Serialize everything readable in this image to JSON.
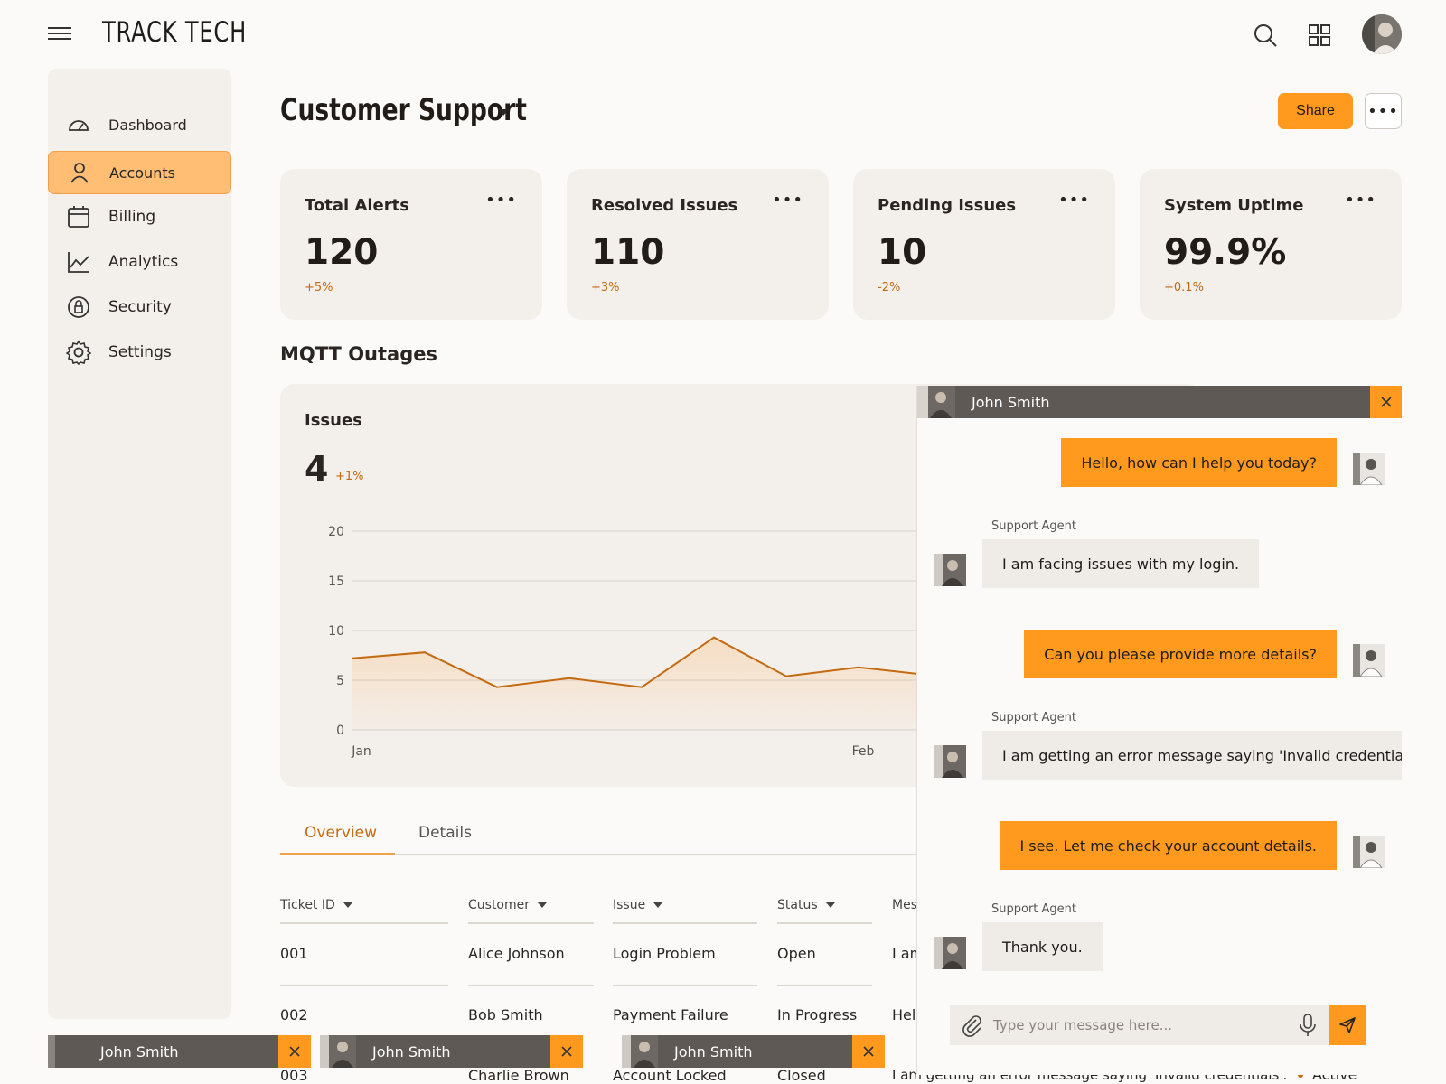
{
  "header": {
    "brand": "TRACK TECH"
  },
  "sidebar": {
    "items": [
      {
        "label": "Dashboard",
        "icon": "gauge-icon"
      },
      {
        "label": "Accounts",
        "icon": "user-icon",
        "active": true
      },
      {
        "label": "Billing",
        "icon": "calendar-icon"
      },
      {
        "label": "Analytics",
        "icon": "line-chart-icon"
      },
      {
        "label": "Security",
        "icon": "lock-icon"
      },
      {
        "label": "Settings",
        "icon": "gear-icon"
      }
    ]
  },
  "page": {
    "title": "Customer Support",
    "share_label": "Share"
  },
  "stats": [
    {
      "title": "Total Alerts",
      "value": "120",
      "delta": "+5%"
    },
    {
      "title": "Resolved Issues",
      "value": "110",
      "delta": "+3%"
    },
    {
      "title": "Pending Issues",
      "value": "10",
      "delta": "-2%"
    },
    {
      "title": "System Uptime",
      "value": "99.9%",
      "delta": "+0.1%"
    }
  ],
  "section_title": "MQTT Outages",
  "chart_panel": {
    "label": "Issues",
    "value": "4",
    "delta": "+1%"
  },
  "chart_data": {
    "type": "area",
    "title": "",
    "xlabel": "",
    "ylabel": "",
    "ylim": [
      0,
      20
    ],
    "y_ticks": [
      0,
      5,
      10,
      15,
      20
    ],
    "x_tick_labels": [
      "Jan",
      "Feb"
    ],
    "values": [
      7.2,
      7.8,
      4.3,
      5.2,
      4.3,
      9.3,
      5.4,
      6.3,
      5.5
    ],
    "grid": true
  },
  "tabs": [
    {
      "label": "Overview",
      "active": true
    },
    {
      "label": "Details",
      "active": false
    }
  ],
  "table": {
    "columns": [
      "Ticket ID",
      "Customer",
      "Issue",
      "Status",
      "Mes"
    ],
    "rows": [
      {
        "id": "001",
        "customer": "Alice Johnson",
        "issue": "Login Problem",
        "status": "Open",
        "message": "I am"
      },
      {
        "id": "002",
        "customer": "Bob Smith",
        "issue": "Payment Failure",
        "status": "In Progress",
        "message": "Hell"
      },
      {
        "id": "003",
        "customer": "Charlie Brown",
        "issue": "Account Locked",
        "status": "Closed",
        "message": "I am getting an error message saying 'Invalid credentials'."
      }
    ],
    "status_badge": "Active"
  },
  "chat": {
    "contact": "John Smith",
    "messages": [
      {
        "from": "me",
        "text": "Hello, how can I help you today?"
      },
      {
        "from": "agent",
        "sender": "Support Agent",
        "text": "I am facing issues with my login."
      },
      {
        "from": "me",
        "text": "Can you please provide more details?"
      },
      {
        "from": "agent",
        "sender": "Support Agent",
        "text": "I am getting an error message saying 'Invalid credentials'."
      },
      {
        "from": "me",
        "text": "I see. Let me check your account details."
      },
      {
        "from": "agent",
        "sender": "Support Agent",
        "text": "Thank you."
      }
    ],
    "input_placeholder": "Type your message here..."
  },
  "minimized_chats": [
    {
      "name": "John Smith"
    },
    {
      "name": "John Smith"
    },
    {
      "name": "John Smith"
    }
  ],
  "colors": {
    "accent": "#ff9a1e",
    "accent_light": "#ffbe73",
    "delta_text": "#c46a10",
    "panel_bg": "#f3efea",
    "chat_header": "#5e5955"
  }
}
